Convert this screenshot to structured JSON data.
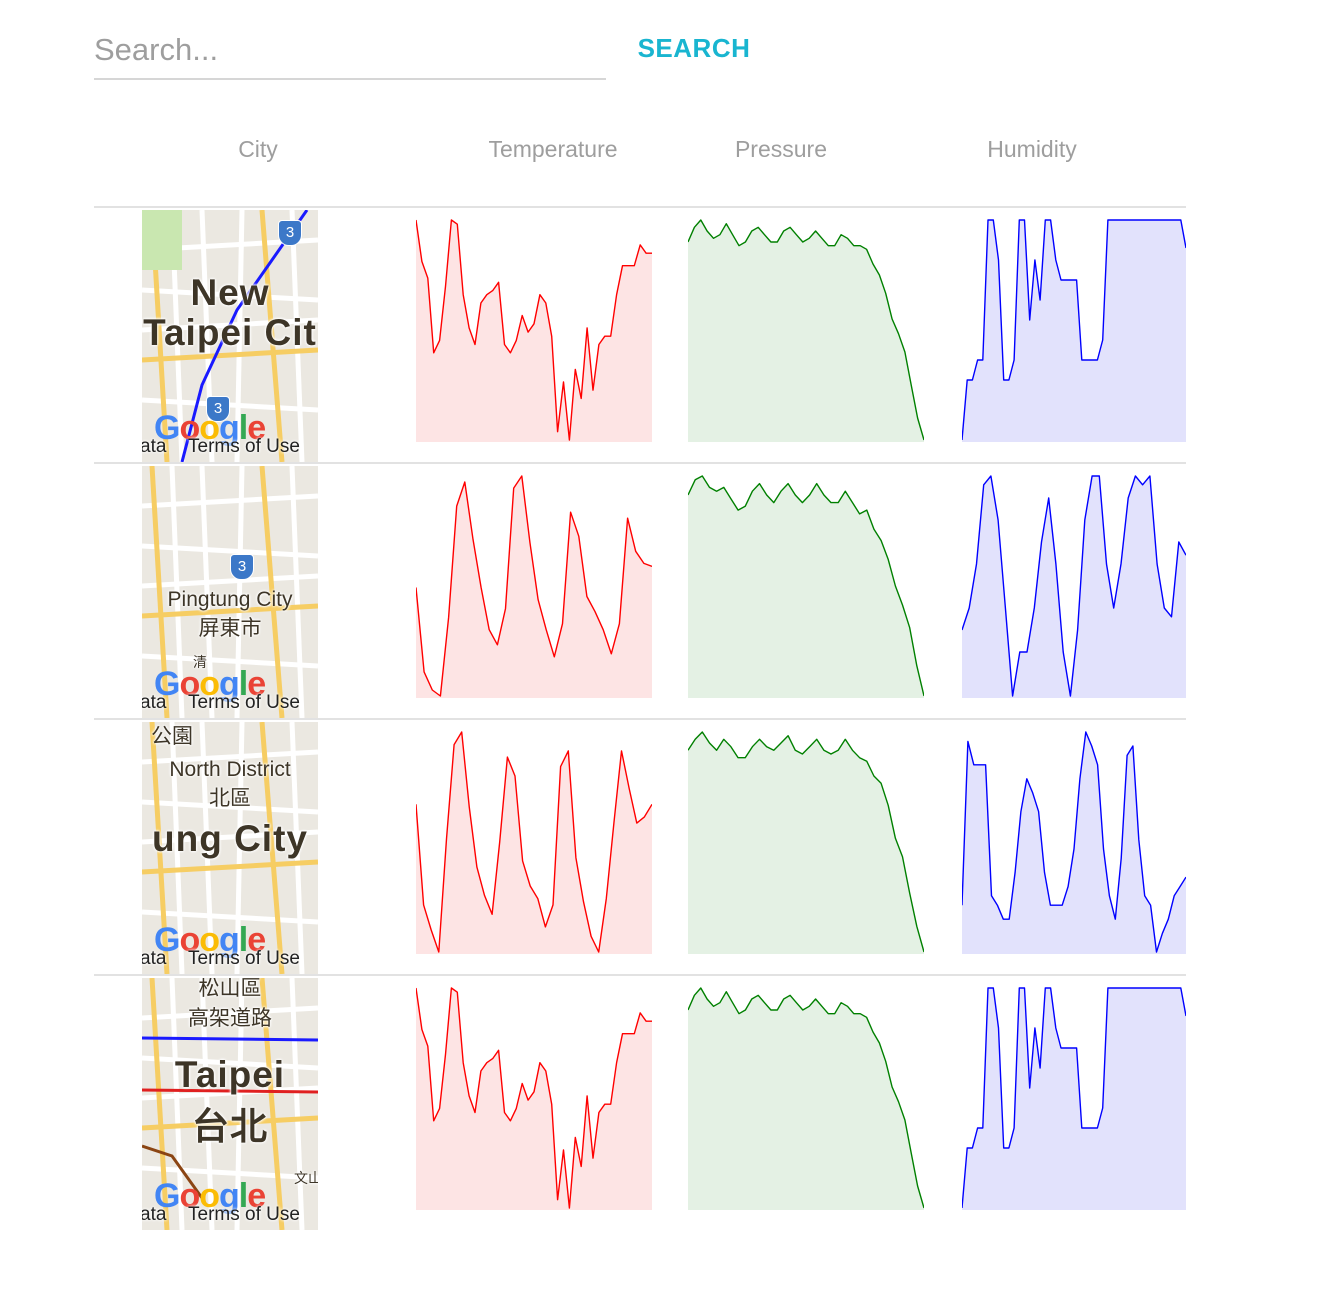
{
  "search": {
    "placeholder": "Search...",
    "value": "",
    "button_label": "SEARCH",
    "accent": "#19b5d0"
  },
  "table": {
    "headers": [
      "City",
      "Temperature",
      "Pressure",
      "Humidity"
    ],
    "colors": {
      "temperature": "#ff0000",
      "pressure": "#008000",
      "humidity": "#0000ff"
    },
    "rows": [
      {
        "map": {
          "labels": [
            "New",
            "Taipei Cit"
          ],
          "attribution_data": "ata",
          "terms": "Terms of Use",
          "logo": "Google",
          "shields": [
            "3",
            "3"
          ]
        },
        "temperature": [
          22.4,
          21.4,
          21.0,
          19.2,
          19.5,
          20.8,
          22.4,
          22.3,
          20.6,
          19.8,
          19.4,
          20.4,
          20.6,
          20.7,
          20.9,
          19.4,
          19.2,
          19.5,
          20.1,
          19.7,
          19.9,
          20.6,
          20.4,
          19.6,
          17.3,
          18.5,
          17.1,
          18.8,
          18.1,
          19.8,
          18.3,
          19.4,
          19.6,
          19.6,
          20.6,
          21.3,
          21.3,
          21.3,
          21.8,
          21.6,
          21.6
        ],
        "pressure": [
          1013.4,
          1013.8,
          1014.0,
          1013.7,
          1013.5,
          1013.6,
          1013.9,
          1013.6,
          1013.3,
          1013.4,
          1013.7,
          1013.8,
          1013.6,
          1013.4,
          1013.4,
          1013.7,
          1013.8,
          1013.6,
          1013.4,
          1013.5,
          1013.7,
          1013.5,
          1013.3,
          1013.3,
          1013.6,
          1013.5,
          1013.3,
          1013.3,
          1013.2,
          1012.8,
          1012.5,
          1012.0,
          1011.3,
          1010.9,
          1010.4,
          1009.5,
          1008.6,
          1008.0
        ],
        "humidity": [
          40,
          55,
          55,
          60,
          60,
          95,
          95,
          85,
          55,
          55,
          60,
          95,
          95,
          70,
          85,
          75,
          95,
          95,
          85,
          80,
          80,
          80,
          80,
          60,
          60,
          60,
          60,
          65,
          95,
          95,
          95,
          95,
          95,
          95,
          95,
          95,
          95,
          95,
          95,
          95,
          95,
          95,
          95,
          88
        ]
      },
      {
        "map": {
          "labels": [
            "Pingtung City",
            "屏東市",
            "清"
          ],
          "attribution_data": "ata",
          "terms": "Terms of Use",
          "logo": "Google",
          "shields": [
            "3"
          ]
        },
        "temperature": [
          20.8,
          18.0,
          17.4,
          17.2,
          19.8,
          23.5,
          24.3,
          22.4,
          20.8,
          19.4,
          18.9,
          20.1,
          24.1,
          24.5,
          22.3,
          20.4,
          19.4,
          18.5,
          19.6,
          23.3,
          22.5,
          20.5,
          20.0,
          19.4,
          18.6,
          19.6,
          23.1,
          22.0,
          21.6,
          21.5
        ],
        "pressure": [
          1013.6,
          1014.0,
          1014.1,
          1013.8,
          1013.7,
          1013.8,
          1013.5,
          1013.2,
          1013.3,
          1013.7,
          1013.9,
          1013.6,
          1013.4,
          1013.7,
          1013.9,
          1013.6,
          1013.4,
          1013.6,
          1013.9,
          1013.6,
          1013.4,
          1013.4,
          1013.7,
          1013.4,
          1013.1,
          1013.2,
          1012.7,
          1012.4,
          1011.9,
          1011.2,
          1010.7,
          1010.1,
          1009.1,
          1008.3
        ],
        "humidity": [
          55,
          60,
          70,
          88,
          90,
          80,
          60,
          40,
          50,
          50,
          60,
          75,
          85,
          70,
          50,
          40,
          55,
          80,
          90,
          90,
          70,
          60,
          70,
          85,
          90,
          88,
          90,
          70,
          60,
          58,
          75,
          72
        ],
        "note": "humidity series shown as normalized 0-100 scale"
      },
      {
        "map": {
          "labels": [
            "公園",
            "North District",
            "北區",
            "ung City"
          ],
          "attribution_data": "ata",
          "terms": "Terms of Use",
          "logo": "Google",
          "shields": []
        },
        "temperature": [
          21.9,
          18.7,
          17.9,
          17.2,
          20.8,
          23.8,
          24.2,
          21.8,
          19.9,
          19.0,
          18.4,
          20.7,
          23.4,
          22.8,
          20.1,
          19.3,
          18.9,
          18.0,
          18.7,
          23.1,
          23.6,
          20.2,
          18.8,
          17.7,
          17.2,
          18.9,
          21.3,
          23.6,
          22.4,
          21.3,
          21.5,
          21.9
        ],
        "pressure": [
          1013.5,
          1013.8,
          1014.0,
          1013.7,
          1013.5,
          1013.8,
          1013.6,
          1013.3,
          1013.3,
          1013.6,
          1013.8,
          1013.6,
          1013.5,
          1013.7,
          1013.9,
          1013.5,
          1013.4,
          1013.6,
          1013.8,
          1013.5,
          1013.4,
          1013.5,
          1013.8,
          1013.5,
          1013.3,
          1013.2,
          1012.8,
          1012.6,
          1012.0,
          1011.1,
          1010.6,
          1009.6,
          1008.7,
          1008.0
        ],
        "humidity": [
          58,
          93,
          88,
          88,
          88,
          60,
          58,
          55,
          55,
          65,
          78,
          85,
          82,
          78,
          65,
          58,
          58,
          58,
          62,
          70,
          85,
          95,
          92,
          88,
          70,
          60,
          55,
          68,
          90,
          92,
          72,
          60,
          58,
          48,
          52,
          55,
          60,
          62,
          64
        ],
        "note": "humidity series shown as normalized 0-100 scale"
      },
      {
        "map": {
          "labels": [
            "松山區",
            "高架道路",
            "Taipei",
            "台北",
            "文山"
          ],
          "attribution_data": "ata",
          "terms": "Terms of Use",
          "logo": "Google",
          "shields": []
        },
        "temperature": [
          22.4,
          21.4,
          21.0,
          19.2,
          19.5,
          20.8,
          22.4,
          22.3,
          20.6,
          19.8,
          19.4,
          20.4,
          20.6,
          20.7,
          20.9,
          19.4,
          19.2,
          19.5,
          20.1,
          19.7,
          19.9,
          20.6,
          20.4,
          19.6,
          17.3,
          18.5,
          17.1,
          18.8,
          18.1,
          19.8,
          18.3,
          19.4,
          19.6,
          19.6,
          20.6,
          21.3,
          21.3,
          21.3,
          21.8,
          21.6,
          21.6
        ],
        "pressure": [
          1013.4,
          1013.8,
          1014.0,
          1013.7,
          1013.5,
          1013.6,
          1013.9,
          1013.6,
          1013.3,
          1013.4,
          1013.7,
          1013.8,
          1013.6,
          1013.4,
          1013.4,
          1013.7,
          1013.8,
          1013.6,
          1013.4,
          1013.5,
          1013.7,
          1013.5,
          1013.3,
          1013.3,
          1013.6,
          1013.5,
          1013.3,
          1013.3,
          1013.2,
          1012.8,
          1012.5,
          1012.0,
          1011.3,
          1010.9,
          1010.4,
          1009.5,
          1008.6,
          1008.0
        ],
        "humidity": [
          40,
          55,
          55,
          60,
          60,
          95,
          95,
          85,
          55,
          55,
          60,
          95,
          95,
          70,
          85,
          75,
          95,
          95,
          85,
          80,
          80,
          80,
          80,
          60,
          60,
          60,
          60,
          65,
          95,
          95,
          95,
          95,
          95,
          95,
          95,
          95,
          95,
          95,
          95,
          95,
          95,
          95,
          95,
          88
        ]
      }
    ]
  }
}
